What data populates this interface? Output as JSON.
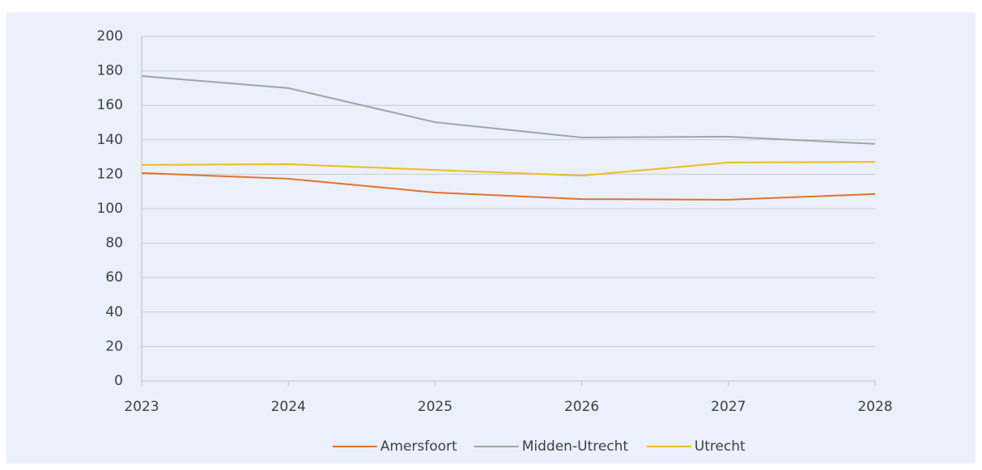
{
  "chart_data": {
    "type": "line",
    "categories": [
      "2023",
      "2024",
      "2025",
      "2026",
      "2027",
      "2028"
    ],
    "series": [
      {
        "name": "Amersfoort",
        "color": "#e2712a",
        "values": [
          120.7,
          117.4,
          109.4,
          105.6,
          105.2,
          108.5
        ]
      },
      {
        "name": "Midden-Utrecht",
        "color": "#a3a3a3",
        "values": [
          177,
          170,
          150.2,
          141.3,
          141.8,
          137.6
        ]
      },
      {
        "name": "Utrecht",
        "color": "#f2bb1a",
        "values": [
          125.4,
          125.8,
          122.5,
          119.2,
          126.8,
          127.2
        ]
      }
    ],
    "ylim": [
      0,
      200
    ],
    "yticks": [
      0,
      20,
      40,
      60,
      80,
      100,
      120,
      140,
      160,
      180,
      200
    ],
    "grid": true,
    "legend": "bottom"
  }
}
